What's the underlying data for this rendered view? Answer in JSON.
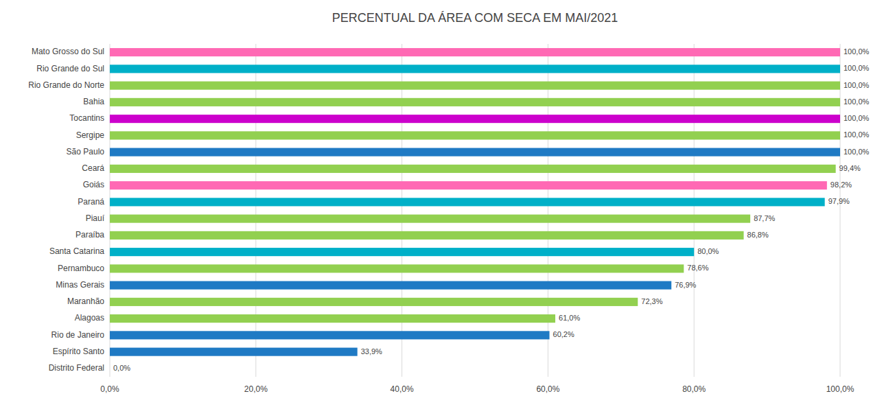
{
  "chart_data": {
    "type": "bar",
    "orientation": "horizontal",
    "title": "PERCENTUAL DA ÁREA COM SECA EM MAI/2021",
    "categories": [
      "Distrito Federal",
      "Espírito Santo",
      "Rio de Janeiro",
      "Alagoas",
      "Maranhão",
      "Minas Gerais",
      "Pernambuco",
      "Santa Catarina",
      "Paraíba",
      "Piauí",
      "Paraná",
      "Goiás",
      "Ceará",
      "São Paulo",
      "Sergipe",
      "Tocantins",
      "Bahia",
      "Rio Grande do Norte",
      "Rio Grande do Sul",
      "Mato Grosso do Sul"
    ],
    "values": [
      0.0,
      33.9,
      60.2,
      61.0,
      72.3,
      76.9,
      78.6,
      80.0,
      86.8,
      87.7,
      97.9,
      98.2,
      99.4,
      100.0,
      100.0,
      100.0,
      100.0,
      100.0,
      100.0,
      100.0
    ],
    "value_labels": [
      "0,0%",
      "33,9%",
      "60,2%",
      "61,0%",
      "72,3%",
      "76,9%",
      "78,6%",
      "80,0%",
      "86,8%",
      "87,7%",
      "97,9%",
      "98,2%",
      "99,4%",
      "100,0%",
      "100,0%",
      "100,0%",
      "100,0%",
      "100,0%",
      "100,0%",
      "100,0%"
    ],
    "colors": [
      "#92D050",
      "#1F7AC4",
      "#1F7AC4",
      "#92D050",
      "#92D050",
      "#1F7AC4",
      "#92D050",
      "#00B0C8",
      "#92D050",
      "#92D050",
      "#00B0C8",
      "#FF69B4",
      "#92D050",
      "#1F7AC4",
      "#92D050",
      "#CC00CC",
      "#92D050",
      "#92D050",
      "#00B0C8",
      "#FF69B4"
    ],
    "xlim": [
      0,
      100
    ],
    "xticks": [
      {
        "value": 0,
        "label": "0,0%"
      },
      {
        "value": 20,
        "label": "20,0%"
      },
      {
        "value": 40,
        "label": "40,0%"
      },
      {
        "value": 60,
        "label": "60,0%"
      },
      {
        "value": 80,
        "label": "80,0%"
      },
      {
        "value": 100,
        "label": "100,0%"
      }
    ],
    "grid": true,
    "data_labels": true
  }
}
